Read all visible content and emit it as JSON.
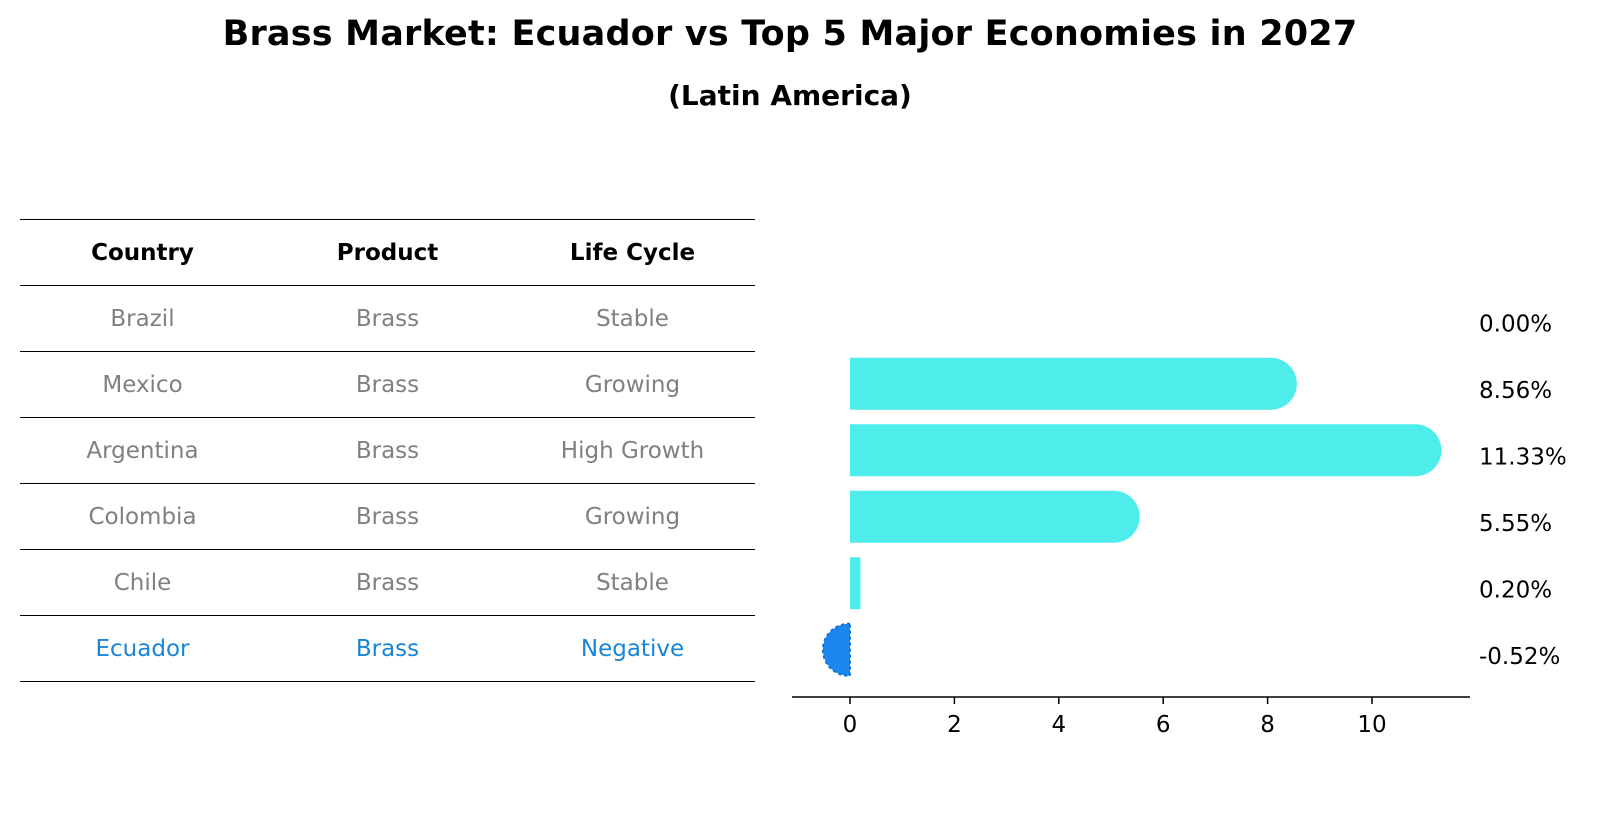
{
  "chart_data": {
    "type": "bar",
    "orientation": "horizontal",
    "title": "Brass Market: Ecuador vs Top 5 Major Economies in 2027",
    "subtitle": "(Latin America)",
    "categories": [
      "Brazil",
      "Mexico",
      "Argentina",
      "Colombia",
      "Chile",
      "Ecuador"
    ],
    "values": [
      0.0,
      8.56,
      11.33,
      5.55,
      0.2,
      -0.52
    ],
    "value_labels": [
      "0.00%",
      "8.56%",
      "11.33%",
      "5.55%",
      "0.20%",
      "-0.52%"
    ],
    "x_ticks": [
      0,
      2,
      4,
      6,
      8,
      10
    ],
    "xlim": [
      -1.15,
      11.9
    ],
    "xlabel": "",
    "ylabel": "",
    "grid": false,
    "colors": {
      "positive": "#4eecea",
      "negative": "#1b86f0"
    }
  },
  "table": {
    "headers": [
      "Country",
      "Product",
      "Life Cycle"
    ],
    "rows": [
      [
        "Brazil",
        "Brass",
        "Stable"
      ],
      [
        "Mexico",
        "Brass",
        "Growing"
      ],
      [
        "Argentina",
        "Brass",
        "High Growth"
      ],
      [
        "Colombia",
        "Brass",
        "Growing"
      ],
      [
        "Chile",
        "Brass",
        "Stable"
      ],
      [
        "Ecuador",
        "Brass",
        "Negative"
      ]
    ],
    "highlight_color": "#1a85d6",
    "text_color": "#808080"
  }
}
